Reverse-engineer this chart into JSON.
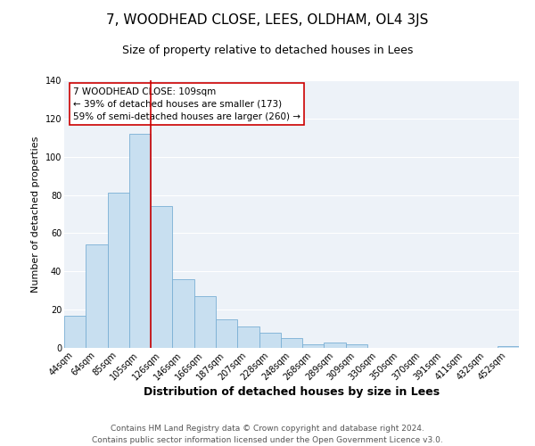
{
  "title": "7, WOODHEAD CLOSE, LEES, OLDHAM, OL4 3JS",
  "subtitle": "Size of property relative to detached houses in Lees",
  "xlabel": "Distribution of detached houses by size in Lees",
  "ylabel": "Number of detached properties",
  "categories": [
    "44sqm",
    "64sqm",
    "85sqm",
    "105sqm",
    "126sqm",
    "146sqm",
    "166sqm",
    "187sqm",
    "207sqm",
    "228sqm",
    "248sqm",
    "268sqm",
    "289sqm",
    "309sqm",
    "330sqm",
    "350sqm",
    "370sqm",
    "391sqm",
    "411sqm",
    "432sqm",
    "452sqm"
  ],
  "values": [
    17,
    54,
    81,
    112,
    74,
    36,
    27,
    15,
    11,
    8,
    5,
    2,
    3,
    2,
    0,
    0,
    0,
    0,
    0,
    0,
    1
  ],
  "bar_color": "#c8dff0",
  "bar_edge_color": "#7aafd4",
  "annotation_title": "7 WOODHEAD CLOSE: 109sqm",
  "annotation_line1": "← 39% of detached houses are smaller (173)",
  "annotation_line2": "59% of semi-detached houses are larger (260) →",
  "annotation_box_color": "#ffffff",
  "annotation_box_edge_color": "#cc0000",
  "vline_color": "#cc0000",
  "vline_x": 3.5,
  "ylim": [
    0,
    140
  ],
  "yticks": [
    0,
    20,
    40,
    60,
    80,
    100,
    120,
    140
  ],
  "footer_line1": "Contains HM Land Registry data © Crown copyright and database right 2024.",
  "footer_line2": "Contains public sector information licensed under the Open Government Licence v3.0.",
  "title_fontsize": 11,
  "subtitle_fontsize": 9,
  "xlabel_fontsize": 9,
  "ylabel_fontsize": 8,
  "tick_fontsize": 7,
  "annotation_fontsize": 7.5,
  "footer_fontsize": 6.5,
  "bg_color": "#edf2f8"
}
